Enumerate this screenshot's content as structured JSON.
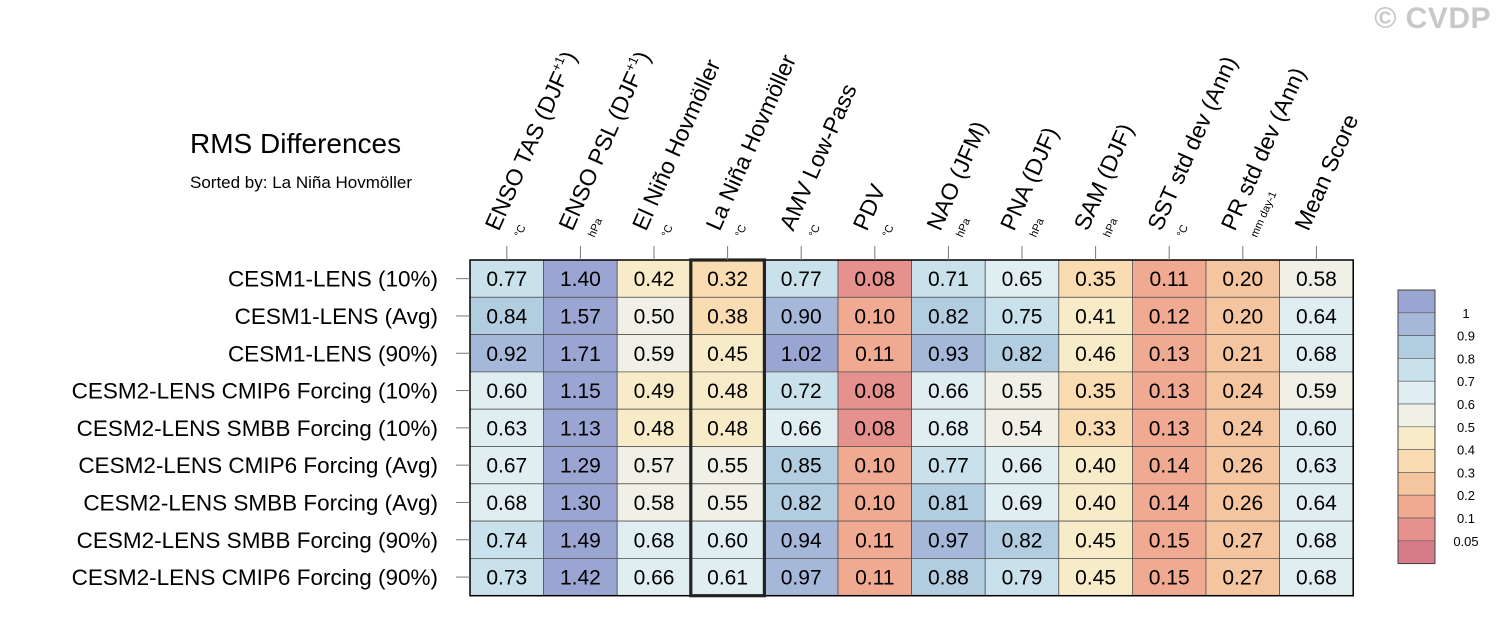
{
  "watermark": "© CVDP",
  "chart_data": {
    "type": "heatmap",
    "title": "RMS Differences",
    "subtitle": "Sorted by: La Niña Hovmöller",
    "highlight_column": 3,
    "columns": [
      {
        "label": "ENSO TAS (DJF",
        "sup": "+1",
        "tail": ")",
        "unit": "°C"
      },
      {
        "label": "ENSO PSL (DJF",
        "sup": "+1",
        "tail": ")",
        "unit": "hPa"
      },
      {
        "label": "El Niño Hovmöller",
        "sup": "",
        "tail": "",
        "unit": "°C"
      },
      {
        "label": "La Niña Hovmöller",
        "sup": "",
        "tail": "",
        "unit": "°C"
      },
      {
        "label": "AMV Low-Pass",
        "sup": "",
        "tail": "",
        "unit": "°C"
      },
      {
        "label": "PDV",
        "sup": "",
        "tail": "",
        "unit": "°C"
      },
      {
        "label": "NAO (JFM)",
        "sup": "",
        "tail": "",
        "unit": "hPa"
      },
      {
        "label": "PNA (DJF)",
        "sup": "",
        "tail": "",
        "unit": "hPa"
      },
      {
        "label": "SAM (DJF)",
        "sup": "",
        "tail": "",
        "unit": "hPa"
      },
      {
        "label": "SST std dev (Ann)",
        "sup": "",
        "tail": "",
        "unit": "°C"
      },
      {
        "label": "PR std dev (Ann)",
        "sup": "",
        "tail": "",
        "unit": "mm day-1"
      },
      {
        "label": "Mean Score",
        "sup": "",
        "tail": "",
        "unit": ""
      }
    ],
    "rows": [
      "CESM1-LENS (10%)",
      "CESM1-LENS (Avg)",
      "CESM1-LENS (90%)",
      "CESM2-LENS CMIP6 Forcing (10%)",
      "CESM2-LENS SMBB Forcing (10%)",
      "CESM2-LENS CMIP6 Forcing (Avg)",
      "CESM2-LENS SMBB Forcing (Avg)",
      "CESM2-LENS SMBB Forcing (90%)",
      "CESM2-LENS CMIP6 Forcing (90%)"
    ],
    "values": [
      [
        "0.77",
        "1.40",
        "0.42",
        "0.32",
        "0.77",
        "0.08",
        "0.71",
        "0.65",
        "0.35",
        "0.11",
        "0.20",
        "0.58"
      ],
      [
        "0.84",
        "1.57",
        "0.50",
        "0.38",
        "0.90",
        "0.10",
        "0.82",
        "0.75",
        "0.41",
        "0.12",
        "0.20",
        "0.64"
      ],
      [
        "0.92",
        "1.71",
        "0.59",
        "0.45",
        "1.02",
        "0.11",
        "0.93",
        "0.82",
        "0.46",
        "0.13",
        "0.21",
        "0.68"
      ],
      [
        "0.60",
        "1.15",
        "0.49",
        "0.48",
        "0.72",
        "0.08",
        "0.66",
        "0.55",
        "0.35",
        "0.13",
        "0.24",
        "0.59"
      ],
      [
        "0.63",
        "1.13",
        "0.48",
        "0.48",
        "0.66",
        "0.08",
        "0.68",
        "0.54",
        "0.33",
        "0.13",
        "0.24",
        "0.60"
      ],
      [
        "0.67",
        "1.29",
        "0.57",
        "0.55",
        "0.85",
        "0.10",
        "0.77",
        "0.66",
        "0.40",
        "0.14",
        "0.26",
        "0.63"
      ],
      [
        "0.68",
        "1.30",
        "0.58",
        "0.55",
        "0.82",
        "0.10",
        "0.81",
        "0.69",
        "0.40",
        "0.14",
        "0.26",
        "0.64"
      ],
      [
        "0.74",
        "1.49",
        "0.68",
        "0.60",
        "0.94",
        "0.11",
        "0.97",
        "0.82",
        "0.45",
        "0.15",
        "0.27",
        "0.68"
      ],
      [
        "0.73",
        "1.42",
        "0.66",
        "0.61",
        "0.97",
        "0.11",
        "0.88",
        "0.79",
        "0.45",
        "0.15",
        "0.27",
        "0.68"
      ]
    ],
    "colorbar": {
      "levels": [
        "1",
        "0.9",
        "0.8",
        "0.7",
        "0.6",
        "0.5",
        "0.4",
        "0.3",
        "0.2",
        "0.1",
        "0.05"
      ],
      "thresholds": [
        0.05,
        0.1,
        0.2,
        0.3,
        0.4,
        0.5,
        0.6,
        0.7,
        0.8,
        0.9,
        1
      ],
      "colors": [
        "#d67b8a",
        "#e5918d",
        "#f0aa92",
        "#f5c5a0",
        "#f9dcb1",
        "#f8ecc8",
        "#f1f0e6",
        "#e1eef1",
        "#c8e1ea",
        "#b2cce0",
        "#a6b8da",
        "#9aa5d2"
      ]
    }
  }
}
